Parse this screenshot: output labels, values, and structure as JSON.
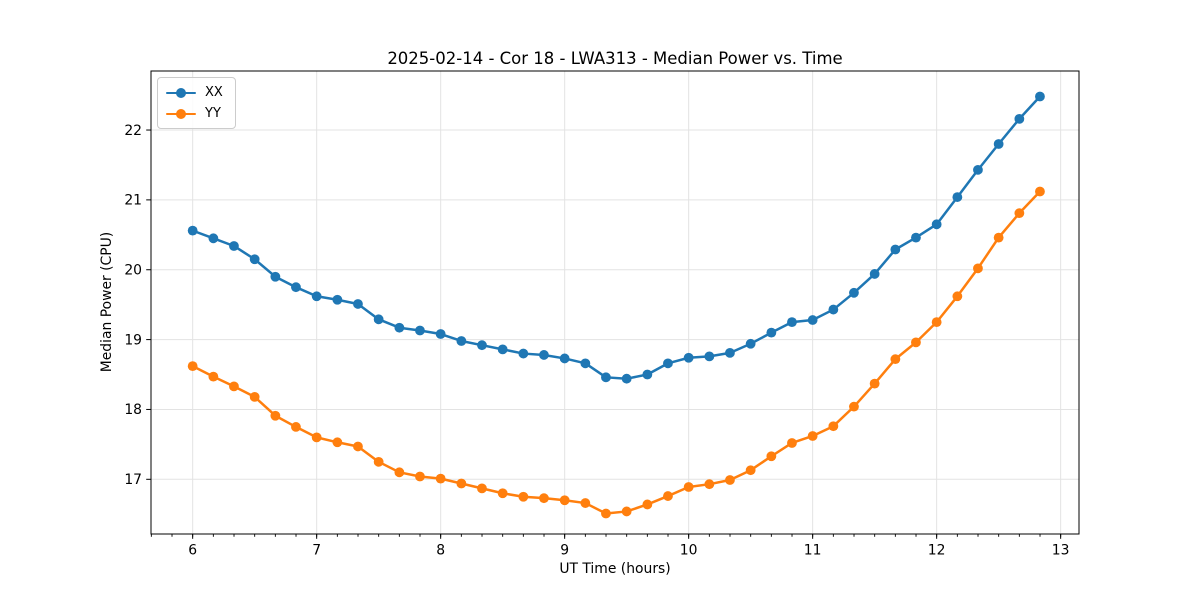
{
  "chart_data": {
    "type": "line",
    "title": "2025-02-14 - Cor 18 - LWA313 - Median Power vs. Time",
    "xlabel": "UT Time (hours)",
    "ylabel": "Median Power (CPU)",
    "xlim": [
      5.664,
      13.148
    ],
    "ylim": [
      16.217,
      22.845
    ],
    "x_ticks": [
      6,
      7,
      8,
      9,
      10,
      11,
      12,
      13
    ],
    "x_minor_tick_step": 0.16667,
    "y_ticks": [
      17,
      18,
      19,
      20,
      21,
      22
    ],
    "grid": true,
    "grid_color": "#e3e3e3",
    "legend_position": "upper-left",
    "x": [
      6.0,
      6.167,
      6.333,
      6.5,
      6.667,
      6.833,
      7.0,
      7.167,
      7.333,
      7.5,
      7.667,
      7.833,
      8.0,
      8.167,
      8.333,
      8.5,
      8.667,
      8.833,
      9.0,
      9.167,
      9.333,
      9.5,
      9.667,
      9.833,
      10.0,
      10.167,
      10.333,
      10.5,
      10.667,
      10.833,
      11.0,
      11.167,
      11.333,
      11.5,
      11.667,
      11.833,
      12.0,
      12.167,
      12.333,
      12.5,
      12.667,
      12.833
    ],
    "series": [
      {
        "name": "XX",
        "color": "#1f77b4",
        "values": [
          20.56,
          20.45,
          20.34,
          20.15,
          19.9,
          19.75,
          19.62,
          19.57,
          19.51,
          19.29,
          19.17,
          19.13,
          19.08,
          18.98,
          18.92,
          18.86,
          18.8,
          18.78,
          18.73,
          18.66,
          18.46,
          18.44,
          18.5,
          18.66,
          18.74,
          18.76,
          18.81,
          18.94,
          19.1,
          19.25,
          19.28,
          19.43,
          19.67,
          19.94,
          20.29,
          20.46,
          20.65,
          21.04,
          21.43,
          21.8,
          22.16,
          22.48
        ]
      },
      {
        "name": "YY",
        "color": "#ff7f0e",
        "values": [
          18.62,
          18.47,
          18.33,
          18.18,
          17.91,
          17.75,
          17.6,
          17.53,
          17.47,
          17.25,
          17.1,
          17.04,
          17.01,
          16.94,
          16.87,
          16.8,
          16.75,
          16.73,
          16.7,
          16.66,
          16.51,
          16.54,
          16.64,
          16.76,
          16.89,
          16.93,
          16.99,
          17.13,
          17.33,
          17.52,
          17.62,
          17.76,
          18.04,
          18.37,
          18.72,
          18.96,
          19.25,
          19.62,
          20.02,
          20.46,
          20.81,
          21.12
        ]
      }
    ]
  }
}
